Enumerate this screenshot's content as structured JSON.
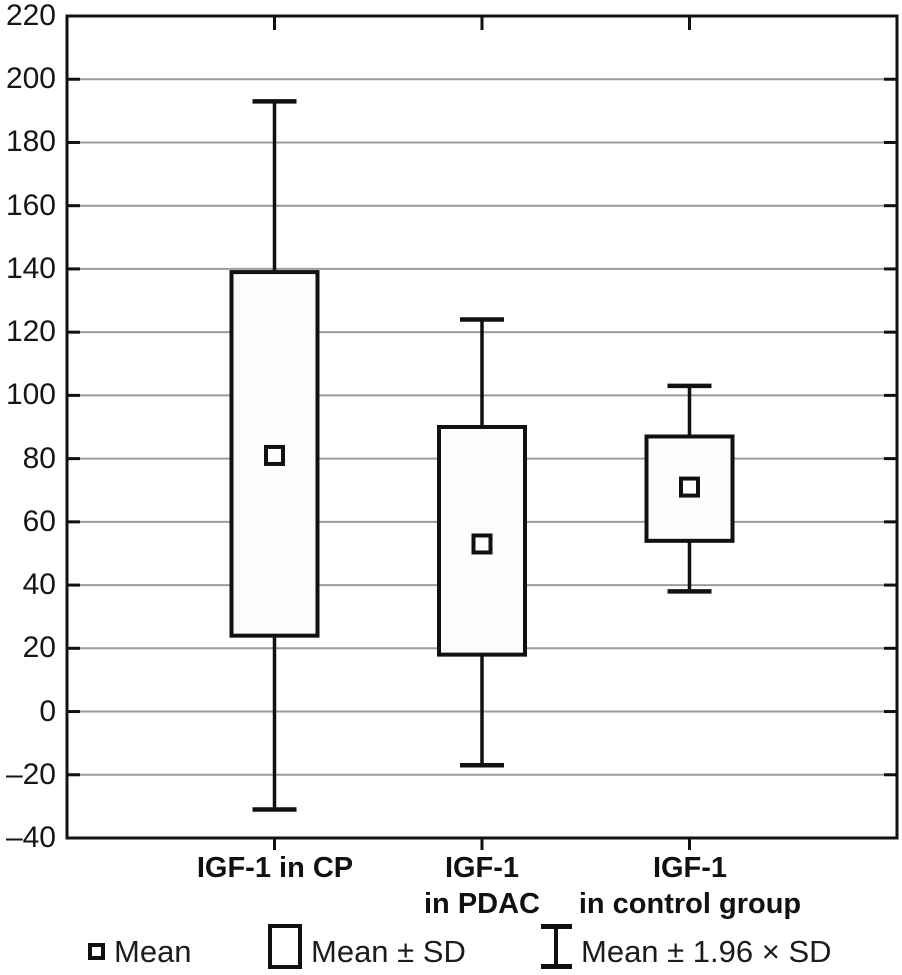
{
  "chart_data": {
    "type": "box",
    "title": "",
    "xlabel": "",
    "ylabel": "",
    "grid": true,
    "legend_position": "bottom",
    "y_axis": {
      "min": -40,
      "max": 220,
      "step": 20,
      "tick_labels": [
        "220",
        "200",
        "180",
        "160",
        "140",
        "120",
        "100",
        "80",
        "60",
        "40",
        "20",
        "0",
        "–20",
        "–40"
      ]
    },
    "categories": [
      [
        "IGF-1 in CP"
      ],
      [
        "IGF-1",
        "in PDAC"
      ],
      [
        "IGF-1",
        "in control group"
      ]
    ],
    "series": [
      {
        "category": "IGF-1 in CP",
        "mean": 81,
        "sd_low": 24,
        "sd_high": 139,
        "whisker_low": -31,
        "whisker_high": 193
      },
      {
        "category": "IGF-1 in PDAC",
        "mean": 53,
        "sd_low": 18,
        "sd_high": 90,
        "whisker_low": -17,
        "whisker_high": 124
      },
      {
        "category": "IGF-1 in control group",
        "mean": 71,
        "sd_low": 54,
        "sd_high": 87,
        "whisker_low": 38,
        "whisker_high": 103
      }
    ],
    "legend": [
      {
        "icon": "mean-square",
        "label": "Mean"
      },
      {
        "icon": "sd-box",
        "label": "Mean ± SD"
      },
      {
        "icon": "whisker",
        "label": "Mean ± 1.96 × SD"
      }
    ],
    "colors": {
      "line": "#111111",
      "grid": "#9b9b9b",
      "box_fill": "#fdfdfd",
      "marker_fill": "#ffffff",
      "background": "#ffffff"
    }
  }
}
